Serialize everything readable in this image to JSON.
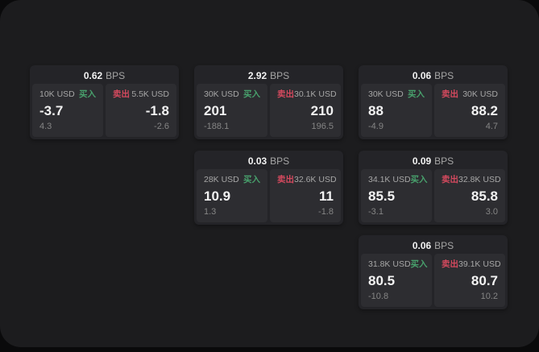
{
  "colors": {
    "page_bg": "#0a0a0b",
    "container_bg": "#1c1c1e",
    "card_bg": "#242428",
    "panel_bg": "#2d2d31",
    "text_primary": "#f2f2f2",
    "text_secondary": "#a6a6a6",
    "text_dim": "#858585",
    "buy_green": "#48a06c",
    "sell_red": "#d4495e"
  },
  "labels": {
    "bps_unit": "BPS",
    "buy": "买入",
    "sell": "卖出"
  },
  "cards": [
    {
      "row": 1,
      "col": 1,
      "bps": "0.62",
      "buy": {
        "amount": "10K USD",
        "price": "-3.7",
        "delta": "4.3"
      },
      "sell": {
        "amount": "5.5K USD",
        "price": "-1.8",
        "delta": "-2.6"
      }
    },
    {
      "row": 1,
      "col": 2,
      "bps": "2.92",
      "buy": {
        "amount": "30K USD",
        "price": "201",
        "delta": "-188.1"
      },
      "sell": {
        "amount": "30.1K USD",
        "price": "210",
        "delta": "196.5"
      }
    },
    {
      "row": 1,
      "col": 3,
      "bps": "0.06",
      "buy": {
        "amount": "30K USD",
        "price": "88",
        "delta": "-4.9"
      },
      "sell": {
        "amount": "30K USD",
        "price": "88.2",
        "delta": "4.7"
      }
    },
    {
      "row": 2,
      "col": 2,
      "bps": "0.03",
      "buy": {
        "amount": "28K USD",
        "price": "10.9",
        "delta": "1.3"
      },
      "sell": {
        "amount": "32.6K USD",
        "price": "11",
        "delta": "-1.8"
      }
    },
    {
      "row": 2,
      "col": 3,
      "bps": "0.09",
      "buy": {
        "amount": "34.1K USD",
        "price": "85.5",
        "delta": "-3.1"
      },
      "sell": {
        "amount": "32.8K USD",
        "price": "85.8",
        "delta": "3.0"
      }
    },
    {
      "row": 3,
      "col": 3,
      "bps": "0.06",
      "buy": {
        "amount": "31.8K USD",
        "price": "80.5",
        "delta": "-10.8"
      },
      "sell": {
        "amount": "39.1K USD",
        "price": "80.7",
        "delta": "10.2"
      }
    }
  ]
}
